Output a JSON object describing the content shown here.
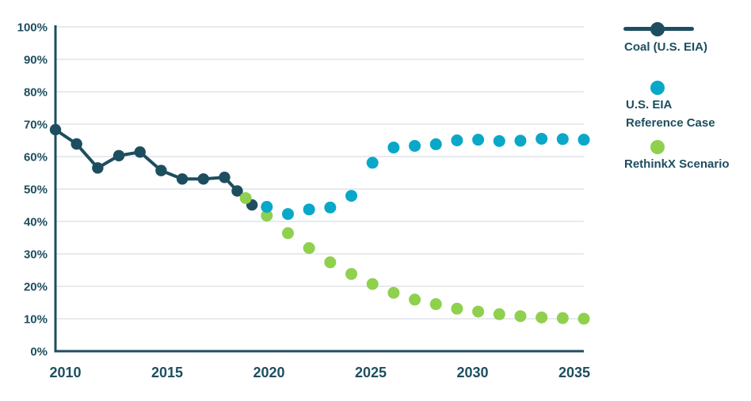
{
  "chart_data": {
    "type": "scatter",
    "title": "",
    "xlabel": "",
    "ylabel": "",
    "xlim": [
      2009.5,
      2035.5
    ],
    "ylim": [
      0,
      100
    ],
    "grid": "horizontal",
    "legend_position": "right",
    "yticks": [
      0,
      10,
      20,
      30,
      40,
      50,
      60,
      70,
      80,
      90,
      100
    ],
    "ytick_suffix": "%",
    "xticks": [
      2010,
      2015,
      2020,
      2025,
      2030,
      2035
    ],
    "series": [
      {
        "name": "Coal (U.S. EIA)",
        "style": "line-with-markers",
        "color": "#1d4e5f",
        "x": [
          2010,
          2011,
          2012,
          2013,
          2014,
          2015,
          2016,
          2017,
          2018,
          2018.6,
          2019.3
        ],
        "values": [
          68.3,
          63.9,
          56.5,
          60.3,
          61.4,
          55.7,
          53.1,
          53.1,
          53.6,
          49.4,
          45.1
        ]
      },
      {
        "name": "U.S. EIA Reference Case",
        "style": "markers",
        "color": "#09a8c9",
        "x": [
          2020,
          2021,
          2022,
          2023,
          2024,
          2025,
          2026,
          2027,
          2028,
          2029,
          2030,
          2031,
          2032,
          2033,
          2034,
          2035
        ],
        "values": [
          44.5,
          42.3,
          43.7,
          44.3,
          47.9,
          58.1,
          62.8,
          63.3,
          63.8,
          65.0,
          65.2,
          64.8,
          64.9,
          65.5,
          65.4,
          65.2
        ]
      },
      {
        "name": "RethinkX Scenario",
        "style": "markers",
        "color": "#8fd04e",
        "x": [
          2019,
          2020,
          2021,
          2022,
          2023,
          2024,
          2025,
          2026,
          2027,
          2028,
          2029,
          2030,
          2031,
          2032,
          2033,
          2034,
          2035
        ],
        "values": [
          47.2,
          41.8,
          36.4,
          31.8,
          27.4,
          23.8,
          20.7,
          18.0,
          15.9,
          14.5,
          13.1,
          12.2,
          11.4,
          10.8,
          10.4,
          10.2,
          10.0
        ]
      }
    ]
  },
  "legend": {
    "items": [
      {
        "label": "Coal (U.S. EIA)",
        "marker": "line-dot",
        "color": "#1d4e5f"
      },
      {
        "label": "U.S. EIA\nReference Case",
        "marker": "dot",
        "color": "#09a8c9"
      },
      {
        "label": "RethinkX Scenario",
        "marker": "dot",
        "color": "#8fd04e"
      }
    ]
  },
  "colors": {
    "navy": "#1d4e5f",
    "cyan": "#09a8c9",
    "green": "#8fd04e",
    "gridline": "#dfe4e8",
    "background": "#ffffff"
  }
}
